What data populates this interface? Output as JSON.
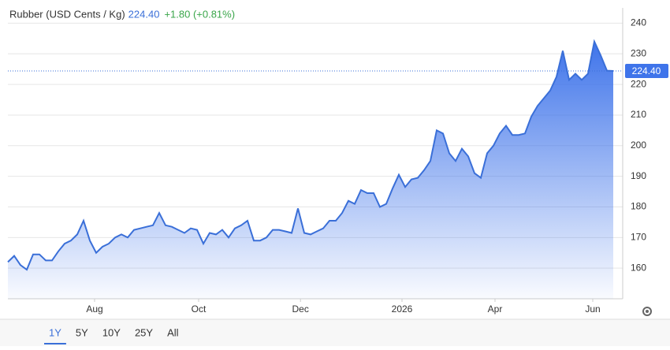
{
  "chart_data": {
    "type": "area",
    "title": "Rubber (USD Cents / Kg)",
    "last_price": {
      "value": 224.4,
      "label": "224.40"
    },
    "change": "+1.80 (+0.81%)",
    "color": "#3a6fd8",
    "values": [
      162,
      164,
      161,
      159.5,
      164.5,
      164.5,
      162.5,
      162.5,
      165.5,
      168,
      169,
      171,
      175.5,
      169,
      165,
      167,
      168,
      170,
      171,
      170,
      172.5,
      173,
      173.5,
      174,
      178,
      174,
      173.5,
      172.5,
      171.5,
      173,
      172.5,
      168,
      171.5,
      171,
      172.5,
      170,
      173,
      174,
      175.5,
      169,
      169,
      170,
      172.5,
      172.5,
      172,
      171.5,
      179.5,
      171.5,
      171,
      172,
      173,
      175.5,
      175.5,
      178,
      182,
      181,
      185.5,
      184.5,
      184.5,
      180,
      181,
      186,
      190.5,
      186.5,
      189,
      189.5,
      192,
      195,
      205,
      204,
      197.5,
      195,
      199,
      196.5,
      191,
      189.5,
      197.5,
      200,
      204,
      206.5,
      203.5,
      203.5,
      204,
      209.5,
      213,
      215.5,
      218,
      222.5,
      231,
      221.5,
      223.5,
      221.5,
      223.5,
      234,
      229.5,
      224.5,
      224.4
    ],
    "xlim": [
      0,
      97.5
    ],
    "xticks": [
      {
        "value": 13.75,
        "label": "Aug"
      },
      {
        "value": 30.25,
        "label": "Oct"
      },
      {
        "value": 46.4,
        "label": "Dec"
      },
      {
        "value": 62.5,
        "label": "2026"
      },
      {
        "value": 77.25,
        "label": "Apr"
      },
      {
        "value": 92.75,
        "label": "Jun"
      }
    ],
    "ylim": [
      150,
      245
    ],
    "yticks": [
      160,
      170,
      180,
      190,
      200,
      210,
      220,
      230,
      240
    ],
    "grid": true,
    "ranges": [
      "1Y",
      "5Y",
      "10Y",
      "25Y",
      "All"
    ],
    "selected_range": 0
  }
}
